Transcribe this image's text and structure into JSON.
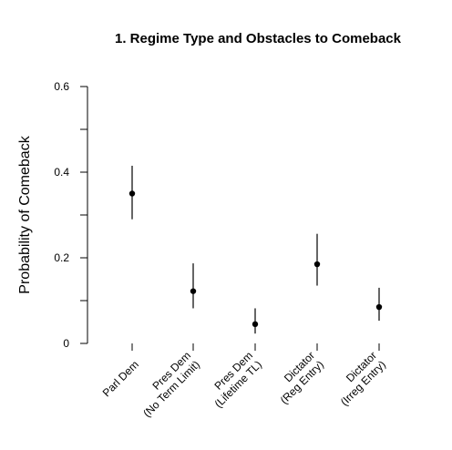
{
  "chart_data": {
    "type": "scatter",
    "title": "1. Regime Type and Obstacles to Comeback",
    "xlabel": "",
    "ylabel": "Probability of Comeback",
    "ylim": [
      0,
      0.6
    ],
    "yticks": [
      "0",
      "0.2",
      "0.4",
      "0.6"
    ],
    "categories": [
      [
        "Parl Dem"
      ],
      [
        "Pres Dem",
        "(No Term Limit)"
      ],
      [
        "Pres Dem",
        "(Lifetime TL)"
      ],
      [
        "Dictator",
        "(Reg Entry)"
      ],
      [
        "Dictator",
        "(Irreg Entry)"
      ]
    ],
    "points": [
      {
        "estimate": 0.35,
        "lower": 0.29,
        "upper": 0.415
      },
      {
        "estimate": 0.122,
        "lower": 0.082,
        "upper": 0.187
      },
      {
        "estimate": 0.045,
        "lower": 0.023,
        "upper": 0.082
      },
      {
        "estimate": 0.185,
        "lower": 0.135,
        "upper": 0.256
      },
      {
        "estimate": 0.085,
        "lower": 0.053,
        "upper": 0.13
      }
    ],
    "grid": false,
    "legend": "none"
  }
}
